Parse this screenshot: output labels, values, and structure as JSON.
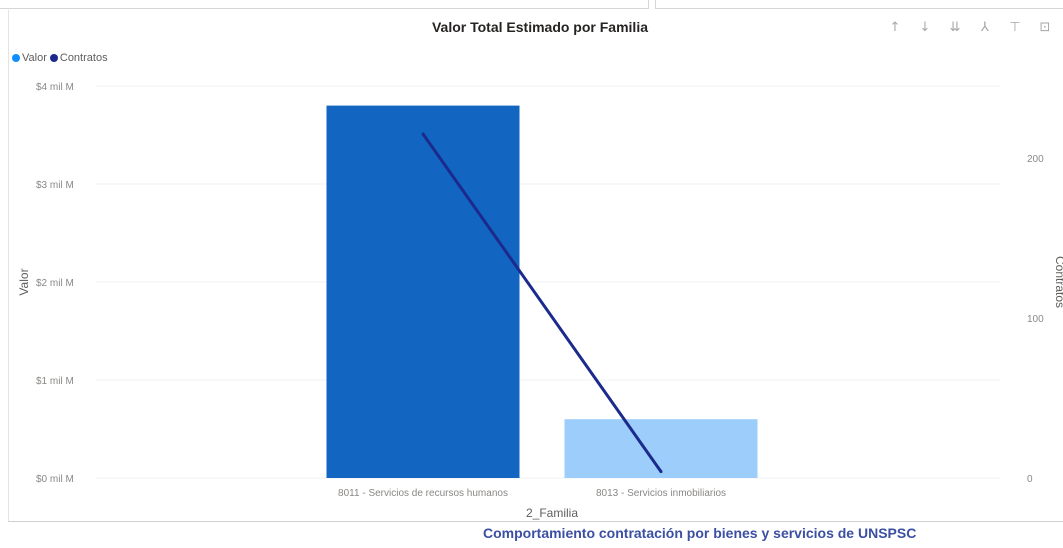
{
  "header": {
    "icons": [
      {
        "name": "sort-up-icon",
        "glyph": "↑"
      },
      {
        "name": "sort-down-icon",
        "glyph": "↓"
      },
      {
        "name": "drill-down-icon",
        "glyph": "⇊"
      },
      {
        "name": "expand-hierarchy-icon",
        "glyph": "⅄"
      },
      {
        "name": "filter-icon",
        "glyph": "⊤"
      },
      {
        "name": "focus-mode-icon",
        "glyph": "⊡"
      }
    ]
  },
  "footer": {
    "caption": "Comportamiento contratación por bienes y servicios de UNSPSC"
  },
  "chart_data": {
    "type": "bar",
    "title": "Valor Total Estimado por Familia",
    "xlabel": "2_Familia",
    "ylabel": "Valor",
    "y2label": "Contratos",
    "categories": [
      "8011 - Servicios de recursos humanos",
      "8013 - Servicios inmobiliarios"
    ],
    "series": [
      {
        "name": "Valor",
        "kind": "bar",
        "axis": "left",
        "values": [
          3.8,
          0.6
        ],
        "colors": [
          "#1266c2",
          "#9ccdfb"
        ]
      },
      {
        "name": "Contratos",
        "kind": "line",
        "axis": "right",
        "values": [
          215,
          4
        ],
        "color": "#1b2a8c"
      }
    ],
    "ylim": [
      0,
      4
    ],
    "y2lim": [
      0,
      245
    ],
    "yticks": [
      0,
      1,
      2,
      3,
      4
    ],
    "ytick_labels": [
      "$0 mil M",
      "$1 mil M",
      "$2 mil M",
      "$3 mil M",
      "$4 mil M"
    ],
    "y2ticks": [
      0,
      100,
      200
    ],
    "y2tick_labels": [
      "0",
      "100",
      "200"
    ],
    "legend": {
      "position": "top-left"
    },
    "grid": true
  }
}
